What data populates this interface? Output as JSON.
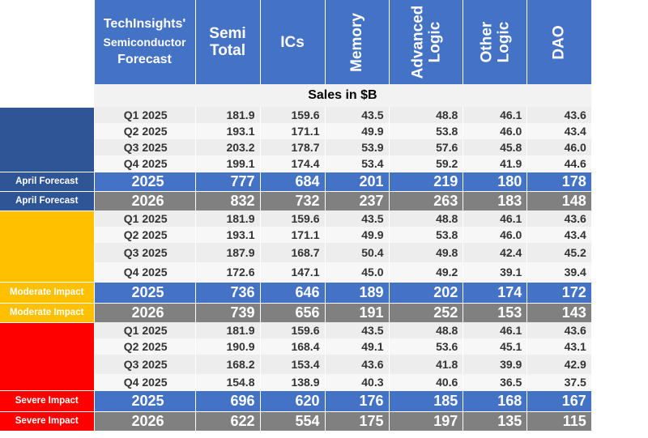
{
  "header": {
    "title_line1": "TechInsights'",
    "title_line2": "Semiconductor",
    "title_line3": "Forecast",
    "columns": [
      {
        "key": "semi",
        "line1": "Semi",
        "line2": "Total"
      },
      {
        "key": "ics",
        "line1": "ICs",
        "line2": ""
      },
      {
        "key": "memory",
        "line1": "Memory",
        "line2": ""
      },
      {
        "key": "advanced_logic",
        "line1": "Advanced",
        "line2": "Logic"
      },
      {
        "key": "other_logic",
        "line1": "Other",
        "line2": "Logic"
      },
      {
        "key": "dao",
        "line1": "DAO",
        "line2": ""
      }
    ]
  },
  "units_label": "Sales in $B",
  "colors": {
    "header_blue": "#4472c4",
    "year_2025": "#4472c4",
    "year_2026": "#808080",
    "april": "#2f5597",
    "moderate": "#ffc000",
    "severe": "#ff0000"
  },
  "chart_data": {
    "type": "table",
    "columns": [
      "Semi Total",
      "ICs",
      "Memory",
      "Advanced Logic",
      "Other Logic",
      "DAO"
    ],
    "units": "Sales in $B",
    "scenarios": [
      {
        "label": "April Forecast",
        "color": "#2f5597",
        "quarters": [
          {
            "label": "Q1 2025",
            "values": [
              "181.9",
              "159.6",
              "43.5",
              "48.8",
              "46.1",
              "43.6"
            ]
          },
          {
            "label": "Q2 2025",
            "values": [
              "193.1",
              "171.1",
              "49.9",
              "53.8",
              "46.0",
              "43.4"
            ]
          },
          {
            "label": "Q3 2025",
            "values": [
              "203.2",
              "178.7",
              "53.9",
              "57.6",
              "45.8",
              "46.0"
            ]
          },
          {
            "label": "Q4 2025",
            "values": [
              "199.1",
              "174.4",
              "53.4",
              "59.2",
              "41.9",
              "44.6"
            ]
          }
        ],
        "years": [
          {
            "label": "2025",
            "values": [
              "777",
              "684",
              "201",
              "219",
              "180",
              "178"
            ]
          },
          {
            "label": "2026",
            "values": [
              "832",
              "732",
              "237",
              "263",
              "183",
              "148"
            ]
          }
        ]
      },
      {
        "label": "Moderate Impact",
        "color": "#ffc000",
        "quarters": [
          {
            "label": "Q1 2025",
            "values": [
              "181.9",
              "159.6",
              "43.5",
              "48.8",
              "46.1",
              "43.6"
            ]
          },
          {
            "label": "Q2 2025",
            "values": [
              "193.1",
              "171.1",
              "49.9",
              "53.8",
              "46.0",
              "43.4"
            ]
          },
          {
            "label": "Q3 2025",
            "values": [
              "187.9",
              "168.7",
              "50.4",
              "49.8",
              "42.4",
              "45.2"
            ]
          },
          {
            "label": "Q4 2025",
            "values": [
              "172.6",
              "147.1",
              "45.0",
              "49.2",
              "39.1",
              "39.4"
            ]
          }
        ],
        "years": [
          {
            "label": "2025",
            "values": [
              "736",
              "646",
              "189",
              "202",
              "174",
              "172"
            ]
          },
          {
            "label": "2026",
            "values": [
              "739",
              "656",
              "191",
              "252",
              "153",
              "143"
            ]
          }
        ]
      },
      {
        "label": "Severe Impact",
        "color": "#ff0000",
        "quarters": [
          {
            "label": "Q1 2025",
            "values": [
              "181.9",
              "159.6",
              "43.5",
              "48.8",
              "46.1",
              "43.6"
            ]
          },
          {
            "label": "Q2 2025",
            "values": [
              "190.9",
              "168.4",
              "49.1",
              "53.6",
              "45.1",
              "43.1"
            ]
          },
          {
            "label": "Q3 2025",
            "values": [
              "168.2",
              "153.4",
              "43.6",
              "41.8",
              "39.9",
              "42.9"
            ]
          },
          {
            "label": "Q4 2025",
            "values": [
              "154.8",
              "138.9",
              "40.3",
              "40.6",
              "36.5",
              "37.5"
            ]
          }
        ],
        "years": [
          {
            "label": "2025",
            "values": [
              "696",
              "620",
              "176",
              "185",
              "168",
              "167"
            ]
          },
          {
            "label": "2026",
            "values": [
              "622",
              "554",
              "175",
              "197",
              "135",
              "115"
            ]
          }
        ]
      }
    ]
  }
}
